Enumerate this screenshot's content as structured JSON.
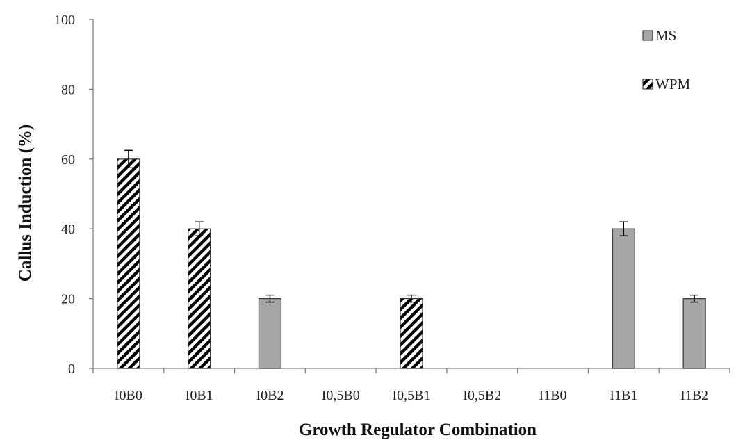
{
  "chart_data": {
    "type": "bar",
    "title": "",
    "xlabel": "Growth Regulator Combination",
    "ylabel": "Callus Induction (%)",
    "ylim": [
      0,
      100
    ],
    "yticks": [
      0,
      20,
      40,
      60,
      80,
      100
    ],
    "grid": false,
    "legend_position": "top-right",
    "categories": [
      "I0B0",
      "I0B1",
      "I0B2",
      "I0,5B0",
      "I0,5B1",
      "I0,5B2",
      "I1B0",
      "I1B1",
      "I1B2"
    ],
    "series": [
      {
        "name": "MS",
        "fill": "#a6a6a6",
        "pattern": "solid",
        "values": [
          0,
          0,
          20,
          0,
          0,
          0,
          0,
          40,
          20
        ],
        "errors": [
          0,
          0,
          1,
          0,
          0,
          0,
          0,
          2,
          1
        ]
      },
      {
        "name": "WPM",
        "fill": "#000000",
        "pattern": "diagonal-hatch",
        "values": [
          60,
          40,
          0,
          0,
          20,
          0,
          0,
          0,
          0
        ],
        "errors": [
          2.5,
          2,
          0,
          0,
          1,
          0,
          0,
          0,
          0
        ]
      }
    ]
  }
}
